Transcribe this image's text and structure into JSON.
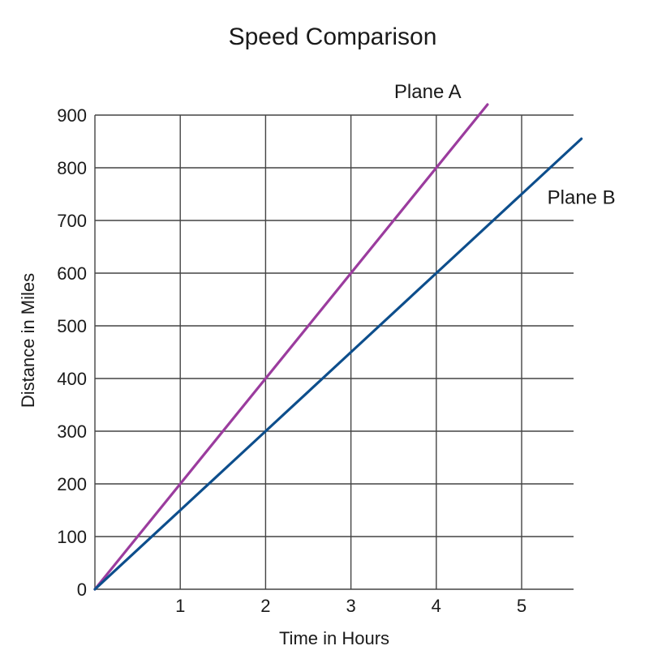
{
  "chart_data": {
    "type": "line",
    "title": "Speed Comparison",
    "xlabel": "Time in Hours",
    "ylabel": "Distance in Miles",
    "xlim": [
      0,
      5.6
    ],
    "ylim": [
      0,
      900
    ],
    "x_ticks": [
      1,
      2,
      3,
      4,
      5
    ],
    "y_ticks": [
      0,
      100,
      200,
      300,
      400,
      500,
      600,
      700,
      800,
      900
    ],
    "grid": true,
    "series": [
      {
        "name": "Plane A",
        "color": "#9b3c9e",
        "slope": 200,
        "x": [
          0,
          1,
          2,
          3,
          4,
          4.6
        ],
        "y": [
          0,
          200,
          400,
          600,
          800,
          920
        ]
      },
      {
        "name": "Plane B",
        "color": "#0d4e8c",
        "slope": 150,
        "x": [
          0,
          1,
          2,
          3,
          4,
          5,
          5.7
        ],
        "y": [
          0,
          150,
          300,
          450,
          600,
          750,
          855
        ]
      }
    ]
  }
}
